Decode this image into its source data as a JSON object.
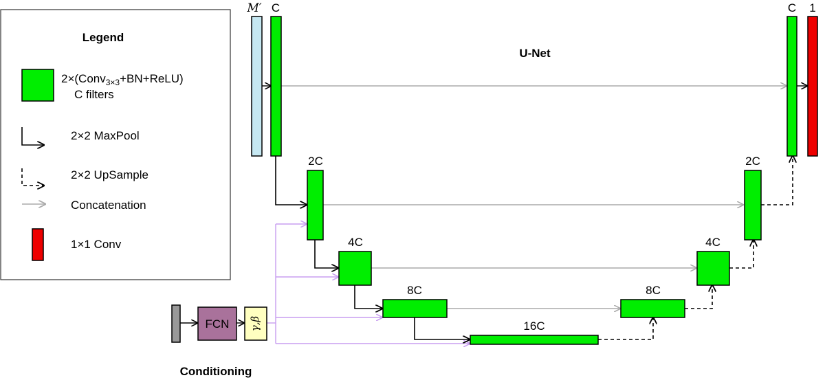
{
  "title": "U-Net",
  "conditioning_label": "Conditioning",
  "legend": {
    "title": "Legend",
    "block_line1": "2×(Conv",
    "block_sub": "3×3",
    "block_line1b": "+BN+ReLU)",
    "block_line2": "C filters",
    "maxpool": "2×2 MaxPool",
    "upsample": "2×2 UpSample",
    "concat": "Concatenation",
    "conv1x1": "1×1 Conv"
  },
  "labels": {
    "input": "M′",
    "enc_c": "C",
    "enc_2c": "2C",
    "enc_4c": "4C",
    "enc_8c": "8C",
    "bottleneck": "16C",
    "dec_8c": "8C",
    "dec_4c": "4C",
    "dec_2c": "2C",
    "dec_c": "C",
    "output": "1",
    "fcn": "FCN",
    "gamma_beta": "γ,β"
  },
  "colors": {
    "block": "#00ee00",
    "input": "#c6e8f2",
    "output": "#ee0000",
    "fcn": "#a9729b",
    "gamma": "#ffffc0",
    "cond_input": "#999999",
    "concat_arrow": "#aaaaaa",
    "film_arrow": "#c89ef0"
  }
}
